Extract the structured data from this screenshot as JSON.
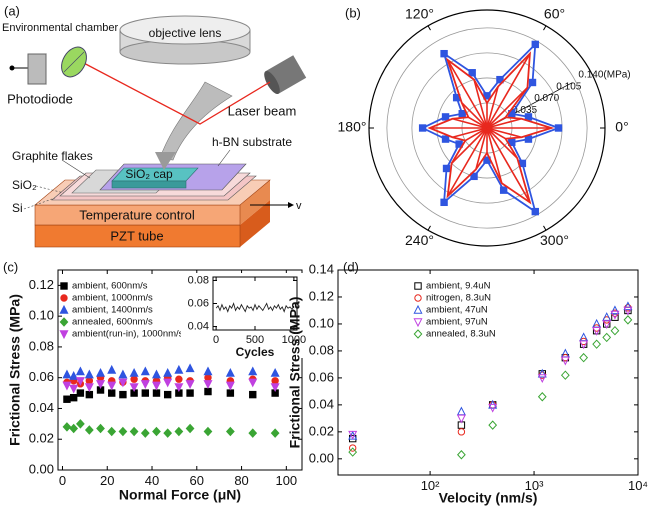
{
  "diagram": {
    "label": "(a)",
    "environmental_chamber": "Environmental chamber",
    "objective_lens": "objective lens",
    "photodiode": "Photodiode",
    "laser_beam": "Laser beam",
    "substrate": "h-BN substrate",
    "graphite": "Graphite flakes",
    "cap": "SiO₂ cap",
    "sio2": "SiO₂",
    "si": "Si",
    "velocity": "v",
    "temperature": "Temperature control",
    "pzt": "PZT tube"
  },
  "chart_data": [
    {
      "type": "polar",
      "label": "(b)",
      "theta": [
        0,
        15,
        30,
        45,
        60,
        75,
        90,
        105,
        120,
        135,
        150,
        165,
        180,
        195,
        210,
        225,
        240,
        255,
        270,
        285,
        300,
        315,
        330,
        345
      ],
      "rlim": [
        0,
        0.165
      ],
      "rticks": [
        0.035,
        {
          "value": 0.07,
          "label": "0.070"
        },
        0.105,
        {
          "value": 0.14,
          "label": "0.140(MPa)"
        }
      ],
      "thetaticks": [
        {
          "value": 0,
          "label": "0°"
        },
        {
          "value": 60,
          "label": "60°"
        },
        {
          "value": 120,
          "label": "120°"
        },
        {
          "value": 180,
          "label": "180°"
        },
        {
          "value": 240,
          "label": "240°"
        },
        {
          "value": 300,
          "label": "300°"
        }
      ],
      "series": [
        {
          "color": "#2f55e0",
          "marker": "square",
          "values": [
            0.1,
            0.06,
            0.04,
            0.09,
            0.135,
            0.07,
            0.045,
            0.08,
            0.12,
            0.06,
            0.04,
            0.06,
            0.09,
            0.06,
            0.045,
            0.08,
            0.12,
            0.07,
            0.045,
            0.09,
            0.135,
            0.07,
            0.04,
            0.06
          ]
        },
        {
          "color": "#e8281e",
          "spokes": true,
          "values": [
            0.09,
            0.05,
            0.03,
            0.08,
            0.12,
            0.06,
            0.035,
            0.07,
            0.11,
            0.05,
            0.03,
            0.05,
            0.08,
            0.05,
            0.035,
            0.07,
            0.11,
            0.06,
            0.035,
            0.08,
            0.12,
            0.06,
            0.03,
            0.05
          ]
        }
      ]
    },
    {
      "type": "scatter",
      "label": "(c)",
      "xlabel": "Normal Force (μN)",
      "ylabel": "Frictional Stress (MPa)",
      "x": [
        2,
        5,
        8,
        12,
        17,
        22,
        27,
        32,
        37,
        42,
        47,
        52,
        57,
        65,
        75,
        85,
        95
      ],
      "xlim": [
        -2,
        107
      ],
      "xticks": [
        0,
        20,
        40,
        60,
        80,
        100
      ],
      "ylim": [
        0,
        0.13
      ],
      "yticks": [
        {
          "value": 0,
          "label": "0.00"
        },
        0.02,
        0.04,
        0.06,
        0.08,
        {
          "value": 0.1,
          "label": "0.10"
        },
        0.12
      ],
      "legend": "upper left",
      "markers_filled": true,
      "series": [
        {
          "name": "ambient, 600nm/s",
          "color": "#000000",
          "marker": "square",
          "values": [
            0.046,
            0.047,
            0.05,
            0.049,
            0.052,
            0.05,
            0.049,
            0.05,
            0.05,
            0.05,
            0.049,
            0.05,
            0.05,
            0.051,
            0.05,
            0.049,
            0.05
          ]
        },
        {
          "name": "ambient, 1000nm/s",
          "color": "#e8281e",
          "marker": "circle",
          "values": [
            0.057,
            0.058,
            0.056,
            0.058,
            0.06,
            0.058,
            0.057,
            0.059,
            0.058,
            0.058,
            0.06,
            0.059,
            0.058,
            0.06,
            0.058,
            0.059,
            0.058
          ]
        },
        {
          "name": "ambient, 1400nm/s",
          "color": "#2f55e0",
          "marker": "triangle",
          "values": [
            0.062,
            0.061,
            0.064,
            0.062,
            0.063,
            0.065,
            0.062,
            0.063,
            0.064,
            0.062,
            0.063,
            0.065,
            0.066,
            0.064,
            0.063,
            0.064,
            0.063
          ]
        },
        {
          "name": "annealed, 600nm/s",
          "color": "#3aa534",
          "marker": "diamond",
          "values": [
            0.028,
            0.027,
            0.03,
            0.026,
            0.027,
            0.025,
            0.025,
            0.025,
            0.024,
            0.025,
            0.024,
            0.025,
            0.027,
            0.025,
            0.025,
            0.024,
            0.024
          ]
        },
        {
          "name": "ambient(run-in), 1000nm/s",
          "color": "#c040e0",
          "marker": "tri-down",
          "values": [
            0.055,
            0.053,
            0.058,
            0.054,
            0.056,
            0.055,
            0.057,
            0.054,
            0.056,
            0.055,
            0.057,
            0.054,
            0.056,
            0.056,
            0.055,
            0.057,
            0.054
          ]
        }
      ]
    },
    {
      "type": "line",
      "xlabel": "Cycles",
      "color": "#222222",
      "x": [
        0,
        25,
        50,
        75,
        100,
        125,
        150,
        175,
        200,
        225,
        250,
        275,
        300,
        325,
        350,
        375,
        400,
        425,
        450,
        475,
        500,
        525,
        550,
        575,
        600,
        625,
        650,
        675,
        700,
        725,
        750,
        775,
        800,
        825,
        850,
        875,
        900,
        925,
        950,
        975,
        1000
      ],
      "values": [
        0.056,
        0.058,
        0.054,
        0.059,
        0.055,
        0.057,
        0.053,
        0.058,
        0.056,
        0.06,
        0.054,
        0.057,
        0.055,
        0.059,
        0.056,
        0.053,
        0.058,
        0.056,
        0.057,
        0.054,
        0.059,
        0.055,
        0.058,
        0.056,
        0.054,
        0.057,
        0.06,
        0.055,
        0.057,
        0.054,
        0.058,
        0.056,
        0.059,
        0.055,
        0.057,
        0.053,
        0.058,
        0.056,
        0.057,
        0.055,
        0.058
      ],
      "xlim": [
        -40,
        1040
      ],
      "xticks": [
        0,
        500,
        1000
      ],
      "ylim": [
        0.037,
        0.083
      ],
      "yticks": [
        0.04,
        0.06,
        0.08
      ]
    },
    {
      "type": "scatter",
      "label": "(d)",
      "xlabel": "Velocity (nm/s)",
      "ylabel": "Frictional Stress (MPa)",
      "xscale": "log",
      "x": [
        18,
        200,
        400,
        1200,
        2000,
        3000,
        4000,
        5000,
        6000,
        8000
      ],
      "xlim": [
        13,
        10000
      ],
      "xticks": [
        {
          "value": 100,
          "label": "10²"
        },
        {
          "value": 1000,
          "label": "10³"
        },
        {
          "value": 10000,
          "label": "10⁴"
        }
      ],
      "ylim": [
        -0.012,
        0.14
      ],
      "yticks": [
        {
          "value": 0,
          "label": "0.00"
        },
        0.02,
        0.04,
        0.06,
        0.08,
        {
          "value": 0.1,
          "label": "0.10"
        },
        0.12,
        0.14
      ],
      "legend": "upper left",
      "markers_filled": false,
      "series": [
        {
          "name": "ambient, 9.4uN",
          "color": "#000000",
          "marker": "square",
          "values": [
            0.015,
            0.025,
            0.04,
            0.063,
            0.075,
            0.085,
            0.095,
            0.1,
            0.105,
            0.11
          ]
        },
        {
          "name": "nitrogen, 8.3uN",
          "color": "#e8281e",
          "marker": "circle",
          "values": [
            0.008,
            0.02,
            0.04,
            0.062,
            0.075,
            0.087,
            0.097,
            0.103,
            0.108,
            0.112
          ]
        },
        {
          "name": "ambient, 47uN",
          "color": "#2f55e0",
          "marker": "triangle",
          "values": [
            0.017,
            0.035,
            0.04,
            0.063,
            0.078,
            0.09,
            0.1,
            0.105,
            0.11,
            0.113
          ]
        },
        {
          "name": "ambient, 97uN",
          "color": "#c040e0",
          "marker": "tri-down",
          "values": [
            0.018,
            0.03,
            0.038,
            0.06,
            0.073,
            0.085,
            0.095,
            0.1,
            0.107,
            0.11
          ]
        },
        {
          "name": "annealed, 8.3uN",
          "color": "#3aa534",
          "marker": "diamond",
          "values": [
            0.005,
            0.003,
            0.025,
            0.046,
            0.062,
            0.075,
            0.085,
            0.09,
            0.095,
            0.103
          ]
        }
      ]
    }
  ]
}
